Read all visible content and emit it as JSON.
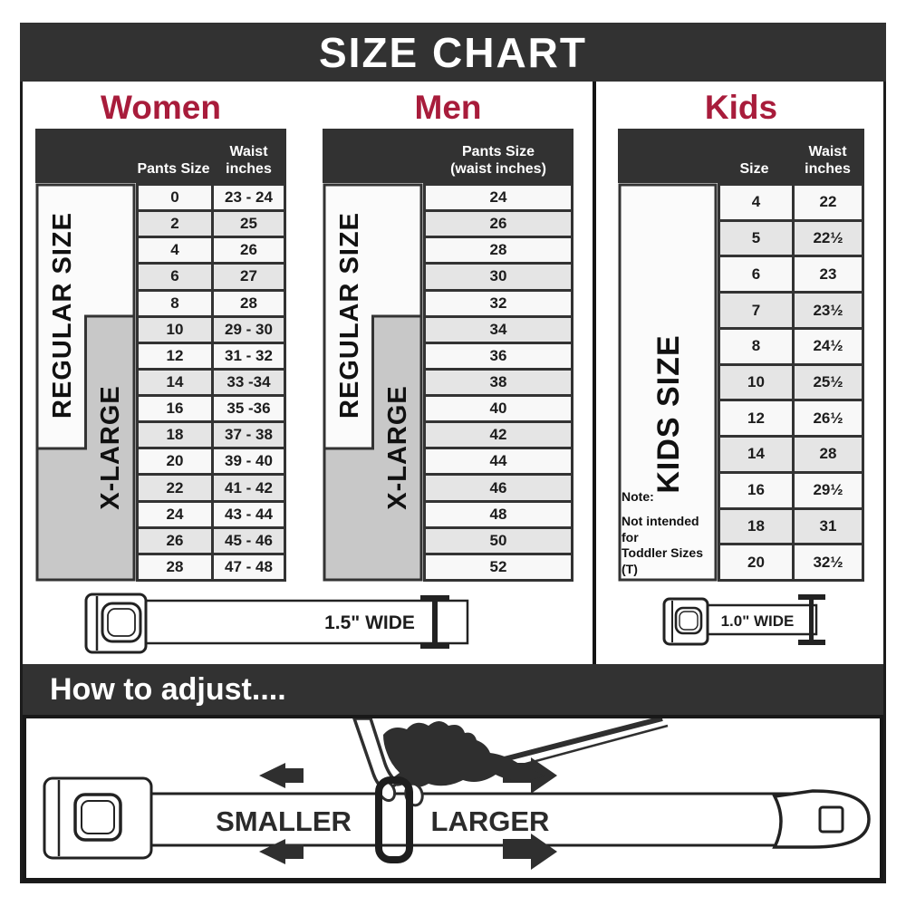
{
  "title": "SIZE CHART",
  "colors": {
    "header_bar": "#323232",
    "accent_red": "#A81C3B",
    "xlarge_block_gray": "#c8c8c8",
    "row_light": "#f8f8f8",
    "row_alt": "#e5e5e5",
    "gridline": "#333333"
  },
  "chart_data": [
    {
      "type": "table",
      "title": "Women",
      "columns": [
        "Pants Size",
        "Waist inches"
      ],
      "rows": [
        [
          "0",
          "23 - 24"
        ],
        [
          "2",
          "25"
        ],
        [
          "4",
          "26"
        ],
        [
          "6",
          "27"
        ],
        [
          "8",
          "28"
        ],
        [
          "10",
          "29 - 30"
        ],
        [
          "12",
          "31 - 32"
        ],
        [
          "14",
          "33 -34"
        ],
        [
          "16",
          "35 -36"
        ],
        [
          "18",
          "37 - 38"
        ],
        [
          "20",
          "39 - 40"
        ],
        [
          "22",
          "41 - 42"
        ],
        [
          "24",
          "43 - 44"
        ],
        [
          "26",
          "45 - 46"
        ],
        [
          "28",
          "47 - 48"
        ]
      ],
      "size_bands": {
        "REGULAR SIZE": "pants 0-18",
        "X-LARGE": "pants 10-28"
      },
      "belt_width": "1.5\" WIDE"
    },
    {
      "type": "table",
      "title": "Men",
      "columns": [
        "Pants Size (waist inches)"
      ],
      "rows": [
        [
          "24"
        ],
        [
          "26"
        ],
        [
          "28"
        ],
        [
          "30"
        ],
        [
          "32"
        ],
        [
          "34"
        ],
        [
          "36"
        ],
        [
          "38"
        ],
        [
          "40"
        ],
        [
          "42"
        ],
        [
          "44"
        ],
        [
          "46"
        ],
        [
          "48"
        ],
        [
          "50"
        ],
        [
          "52"
        ]
      ],
      "size_bands": {
        "REGULAR SIZE": "24-42",
        "X-LARGE": "34-52"
      },
      "belt_width": "1.5\" WIDE"
    },
    {
      "type": "table",
      "title": "Kids",
      "columns": [
        "Size",
        "Waist inches"
      ],
      "rows": [
        [
          "4",
          "22"
        ],
        [
          "5",
          "22½"
        ],
        [
          "6",
          "23"
        ],
        [
          "7",
          "23½"
        ],
        [
          "8",
          "24½"
        ],
        [
          "10",
          "25½"
        ],
        [
          "12",
          "26½"
        ],
        [
          "14",
          "28"
        ],
        [
          "16",
          "29½"
        ],
        [
          "18",
          "31"
        ],
        [
          "20",
          "32½"
        ]
      ],
      "size_bands": {
        "KIDS SIZE": "4-20"
      },
      "note": "Note: Not intended for Toddler Sizes (T)",
      "belt_width": "1.0\" WIDE"
    }
  ],
  "labels": {
    "women_col1": "Pants Size",
    "women_col2": "Waist\ninches",
    "men_col": "Pants Size\n(waist inches)",
    "kids_col1": "Size",
    "kids_col2": "Waist\ninches",
    "regular_size": "REGULAR SIZE",
    "x_large": "X-LARGE",
    "kids_size": "KIDS SIZE",
    "note_title": "Note:",
    "note_body": "Not intended for\nToddler Sizes (T)",
    "adult_belt_width": "1.5\" WIDE",
    "kids_belt_width": "1.0\" WIDE",
    "howto_title": "How to adjust....",
    "smaller": "SMALLER",
    "larger": "LARGER"
  }
}
